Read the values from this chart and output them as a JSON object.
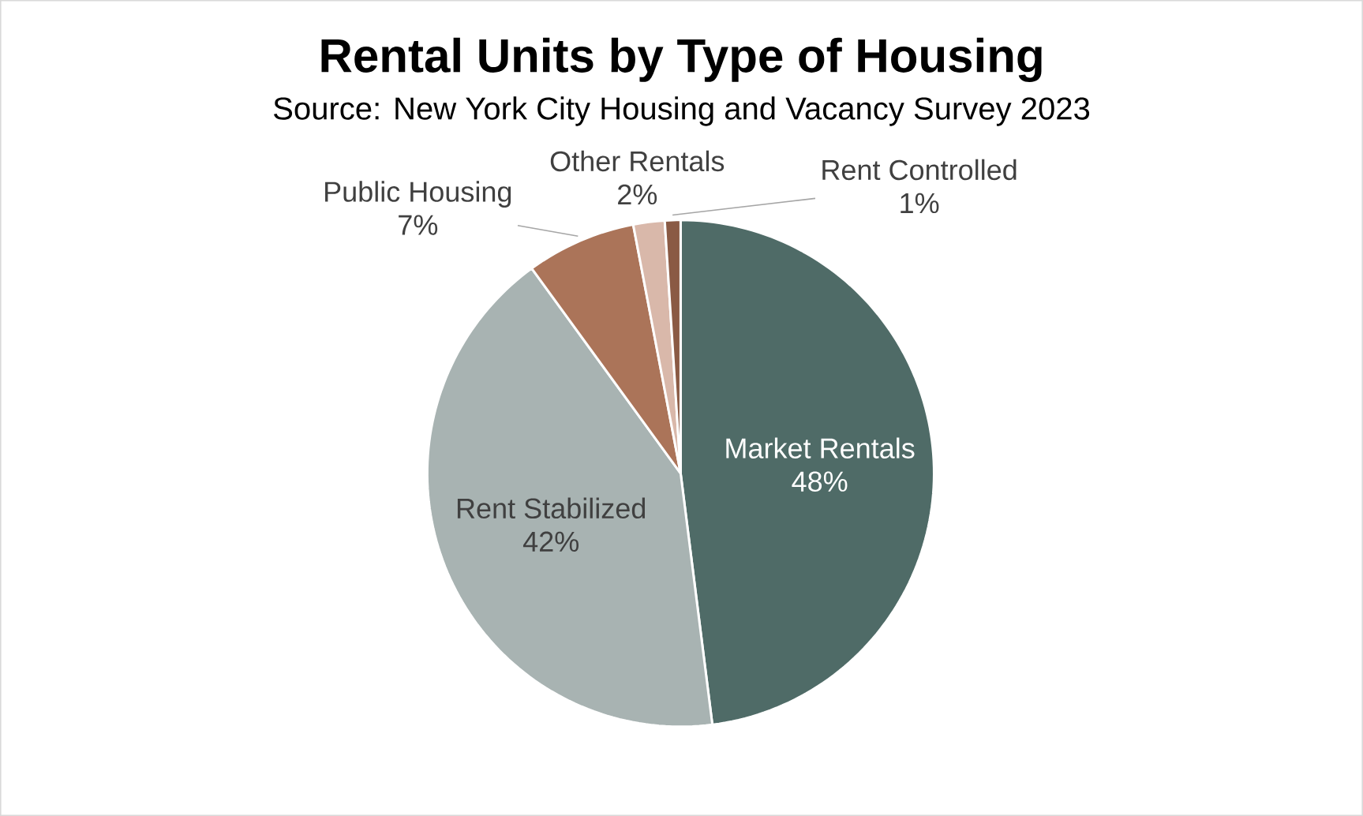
{
  "chart_data": {
    "type": "pie",
    "title": "Rental Units by Type of Housing",
    "subtitle": "Source: New York City Housing and Vacancy Survey 2023",
    "categories": [
      "Market Rentals",
      "Rent Stabilized",
      "Public Housing",
      "Other Rentals",
      "Rent Controlled"
    ],
    "values": [
      48,
      42,
      7,
      2,
      1
    ],
    "value_labels": [
      "48%",
      "42%",
      "7%",
      "2%",
      "1%"
    ],
    "colors": [
      "#4f6b67",
      "#a8b3b2",
      "#ab7459",
      "#d9b8aa",
      "#8a5a44"
    ]
  }
}
